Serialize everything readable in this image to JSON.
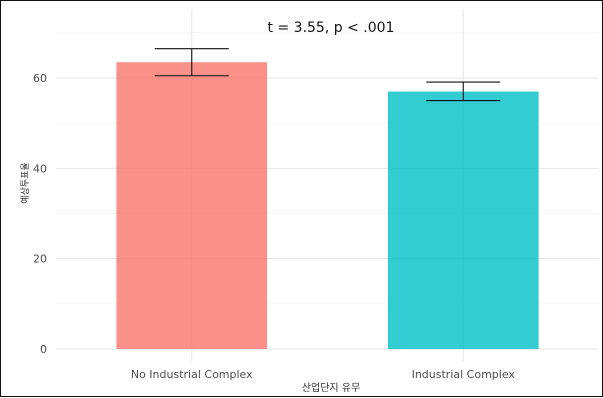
{
  "chart_data": {
    "type": "bar",
    "annotation": "t = 3.55, p < .001",
    "xlabel": "산업단지 유무",
    "ylabel": "예상투표율",
    "categories": [
      "No Industrial Complex",
      "Industrial Complex"
    ],
    "values": [
      63.5,
      57.0
    ],
    "error_low": [
      60.5,
      55.0
    ],
    "error_high": [
      66.5,
      59.1
    ],
    "colors": [
      "#F8766D",
      "#00BFC4"
    ],
    "yticks": [
      0,
      20,
      40,
      60
    ],
    "ylim": [
      0,
      70
    ],
    "grid": true,
    "legend": "none"
  }
}
